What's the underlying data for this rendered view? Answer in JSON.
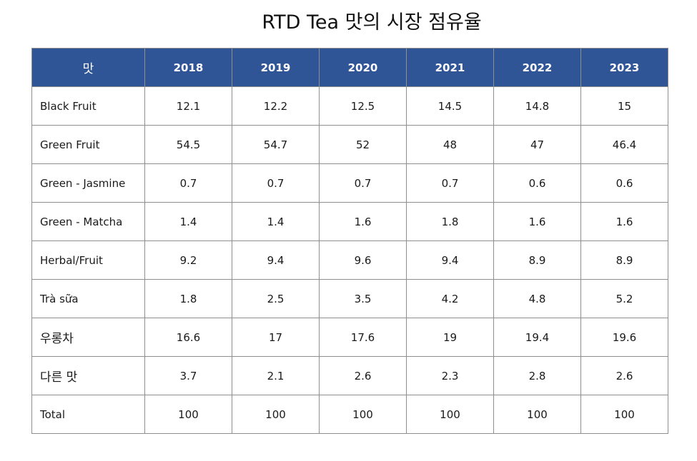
{
  "title": "RTD Tea 맛의 시장 점유율",
  "chart_data": {
    "type": "table",
    "columns": [
      "맛",
      "2018",
      "2019",
      "2020",
      "2021",
      "2022",
      "2023"
    ],
    "rows": [
      {
        "label": "Black Fruit",
        "values": [
          "12.1",
          "12.2",
          "12.5",
          "14.5",
          "14.8",
          "15"
        ]
      },
      {
        "label": "Green Fruit",
        "values": [
          "54.5",
          "54.7",
          "52",
          "48",
          "47",
          "46.4"
        ]
      },
      {
        "label": "Green - Jasmine",
        "values": [
          "0.7",
          "0.7",
          "0.7",
          "0.7",
          "0.6",
          "0.6"
        ]
      },
      {
        "label": "Green - Matcha",
        "values": [
          "1.4",
          "1.4",
          "1.6",
          "1.8",
          "1.6",
          "1.6"
        ]
      },
      {
        "label": "Herbal/Fruit",
        "values": [
          "9.2",
          "9.4",
          "9.6",
          "9.4",
          "8.9",
          "8.9"
        ]
      },
      {
        "label": "Trà sữa",
        "values": [
          "1.8",
          "2.5",
          "3.5",
          "4.2",
          "4.8",
          "5.2"
        ]
      },
      {
        "label": "우롱차",
        "values": [
          "16.6",
          "17",
          "17.6",
          "19",
          "19.4",
          "19.6"
        ]
      },
      {
        "label": "다른 맛",
        "values": [
          "3.7",
          "2.1",
          "2.6",
          "2.3",
          "2.8",
          "2.6"
        ]
      },
      {
        "label": "Total",
        "values": [
          "100",
          "100",
          "100",
          "100",
          "100",
          "100"
        ]
      }
    ]
  },
  "colors": {
    "header_bg": "#2f5597",
    "header_text": "#ffffff",
    "border": "#8f8f8f"
  }
}
